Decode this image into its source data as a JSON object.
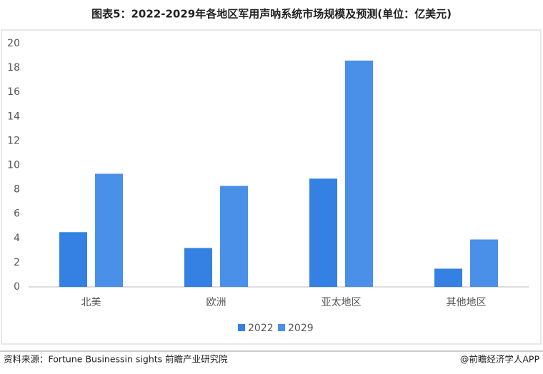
{
  "chart_data": {
    "type": "bar",
    "title": "图表5：2022-2029年各地区军用声呐系统市场规模及预测(单位：亿美元)",
    "categories": [
      "北美",
      "欧洲",
      "亚太地区",
      "其他地区"
    ],
    "series": [
      {
        "name": "2022",
        "color": "#3480e3",
        "values": [
          4.5,
          3.2,
          8.9,
          1.5
        ]
      },
      {
        "name": "2029",
        "color": "#4a8fe8",
        "values": [
          9.3,
          8.3,
          18.6,
          3.9
        ]
      }
    ],
    "ylim": [
      0,
      20
    ],
    "yticks": [
      0,
      2,
      4,
      6,
      8,
      10,
      12,
      14,
      16,
      18,
      20
    ],
    "grid": false,
    "legend": "bottom",
    "source": "资料来源：Fortune Businessin sights 前瞻产业研究院",
    "credit": "@前瞻经济学人APP"
  }
}
